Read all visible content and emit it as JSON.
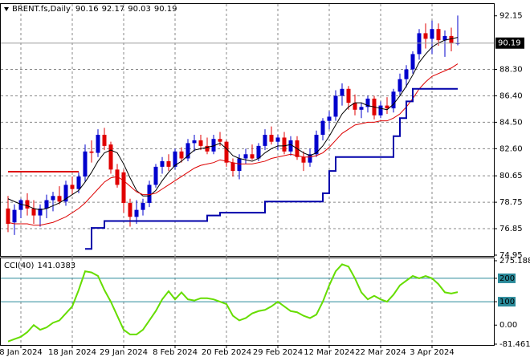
{
  "chart_data": [
    {
      "type": "candlestick",
      "title": "BRENT.fs,Daily",
      "categories": [
        null,
        null,
        "8 Jan 2024",
        null,
        null,
        null,
        null,
        null,
        null,
        null,
        "18 Jan 2024",
        null,
        null,
        null,
        null,
        null,
        null,
        null,
        "29 Jan 2024",
        null,
        null,
        null,
        null,
        null,
        null,
        null,
        "8 Feb 2024",
        null,
        null,
        null,
        null,
        null,
        null,
        null,
        "20 Feb 2024",
        null,
        null,
        null,
        null,
        null,
        null,
        null,
        "29 Feb 2024",
        null,
        null,
        null,
        null,
        null,
        null,
        null,
        "12 Mar 2024",
        null,
        null,
        null,
        null,
        null,
        null,
        null,
        "22 Mar 2024",
        null,
        null,
        null,
        null,
        null,
        null,
        null,
        "3 Apr 2024",
        null,
        null,
        null,
        null
      ],
      "open": [
        78.3,
        77.3,
        78.2,
        78.9,
        78.3,
        77.8,
        78.3,
        78.9,
        79.2,
        78.8,
        80.0,
        79.7,
        80.6,
        82.4,
        82.3,
        83.6,
        82.9,
        81.1,
        80.9,
        78.7,
        77.7,
        78.2,
        78.7,
        80.0,
        81.3,
        81.7,
        81.3,
        82.4,
        81.9,
        83.0,
        83.2,
        82.8,
        82.4,
        83.3,
        83.1,
        81.6,
        81.0,
        81.9,
        82.2,
        81.9,
        82.8,
        83.6,
        83.1,
        83.4,
        82.4,
        83.2,
        82.0,
        81.6,
        82.2,
        83.6,
        84.6,
        84.9,
        86.4,
        86.9,
        85.9,
        85.4,
        85.6,
        86.2,
        85.0,
        85.7,
        85.5,
        86.7,
        87.6,
        88.3,
        89.4,
        90.9,
        90.5,
        91.2,
        90.4,
        90.7,
        90.16
      ],
      "high": [
        79.2,
        78.6,
        79.0,
        79.4,
        78.9,
        78.6,
        79.3,
        79.5,
        79.9,
        80.3,
        80.6,
        80.9,
        82.9,
        83.2,
        84.0,
        84.1,
        83.1,
        81.5,
        81.1,
        79.0,
        78.9,
        79.0,
        80.3,
        81.5,
        82.0,
        82.2,
        82.6,
        82.7,
        83.3,
        83.6,
        83.6,
        83.4,
        83.6,
        83.8,
        83.2,
        81.9,
        82.2,
        82.6,
        82.9,
        83.0,
        84.0,
        84.2,
        83.6,
        83.8,
        83.5,
        83.5,
        82.4,
        82.6,
        83.9,
        84.8,
        85.3,
        86.8,
        87.3,
        87.1,
        86.5,
        85.9,
        86.4,
        86.4,
        86.0,
        86.3,
        86.9,
        88.0,
        88.6,
        89.6,
        91.2,
        91.6,
        91.8,
        91.6,
        91.1,
        91.3,
        92.17
      ],
      "low": [
        76.6,
        76.4,
        77.6,
        77.8,
        77.2,
        77.0,
        77.6,
        78.1,
        78.6,
        78.5,
        79.3,
        79.4,
        80.2,
        81.6,
        82.0,
        82.5,
        80.8,
        79.8,
        78.0,
        77.0,
        77.2,
        77.8,
        78.4,
        79.8,
        80.8,
        81.0,
        81.1,
        81.6,
        81.7,
        82.4,
        82.5,
        82.2,
        82.2,
        82.8,
        81.3,
        80.6,
        80.4,
        81.5,
        81.8,
        81.7,
        82.5,
        82.9,
        82.5,
        82.2,
        82.1,
        81.8,
        81.0,
        81.3,
        82.0,
        83.2,
        84.0,
        84.6,
        85.7,
        85.4,
        85.0,
        84.8,
        85.2,
        84.7,
        84.8,
        85.1,
        85.2,
        86.4,
        87.0,
        88.0,
        89.0,
        89.8,
        89.4,
        90.0,
        89.2,
        89.6,
        90.03
      ],
      "close": [
        77.2,
        78.2,
        78.9,
        78.3,
        77.8,
        78.3,
        78.9,
        79.2,
        78.8,
        80.0,
        79.7,
        80.6,
        82.4,
        82.3,
        83.6,
        82.8,
        81.1,
        80.0,
        78.7,
        77.7,
        78.2,
        78.7,
        80.0,
        81.3,
        81.7,
        81.3,
        82.4,
        81.9,
        83.0,
        83.2,
        82.8,
        82.4,
        83.3,
        83.1,
        81.6,
        81.0,
        81.9,
        82.2,
        81.9,
        82.8,
        83.6,
        83.1,
        83.4,
        82.4,
        83.2,
        82.0,
        81.6,
        82.2,
        83.6,
        84.6,
        84.9,
        86.4,
        86.9,
        85.9,
        85.4,
        85.6,
        86.2,
        85.0,
        85.7,
        85.5,
        86.7,
        87.6,
        88.3,
        89.4,
        90.9,
        90.5,
        91.2,
        90.4,
        90.7,
        90.2,
        90.19
      ],
      "up_color": "#0000cd",
      "down_color": "#e00000",
      "series": [
        {
          "color": "#000000",
          "width": 1,
          "values": [
            79.0,
            78.8,
            78.6,
            78.5,
            78.3,
            78.2,
            78.3,
            78.5,
            78.7,
            79.0,
            79.3,
            79.6,
            80.2,
            80.9,
            81.7,
            82.3,
            82.5,
            82.3,
            81.5,
            80.5,
            79.6,
            79.2,
            79.2,
            79.6,
            80.3,
            80.9,
            81.4,
            81.7,
            82.1,
            82.5,
            82.6,
            82.7,
            82.8,
            83.0,
            82.6,
            82.1,
            81.9,
            81.8,
            81.7,
            81.9,
            82.3,
            82.6,
            82.8,
            82.8,
            82.9,
            82.6,
            82.3,
            82.1,
            82.3,
            82.8,
            83.5,
            84.3,
            85.1,
            85.6,
            85.9,
            85.9,
            85.7,
            85.6,
            85.5,
            85.4,
            85.8,
            86.4,
            87.1,
            87.9,
            88.8,
            89.4,
            89.9,
            90.2,
            90.4,
            90.5,
            90.6
          ]
        },
        {
          "color": "#dd0000",
          "width": 1,
          "values": [
            77.3,
            77.2,
            77.2,
            77.2,
            77.1,
            77.1,
            77.2,
            77.3,
            77.5,
            77.7,
            78.0,
            78.3,
            78.7,
            79.2,
            79.7,
            80.2,
            80.5,
            80.6,
            80.3,
            79.9,
            79.5,
            79.3,
            79.3,
            79.4,
            79.7,
            80.0,
            80.3,
            80.6,
            80.9,
            81.2,
            81.4,
            81.5,
            81.6,
            81.8,
            81.7,
            81.6,
            81.5,
            81.5,
            81.5,
            81.6,
            81.7,
            81.9,
            82.0,
            82.1,
            82.2,
            82.1,
            82.0,
            82.0,
            82.1,
            82.3,
            82.7,
            83.2,
            83.7,
            84.0,
            84.3,
            84.4,
            84.5,
            84.5,
            84.6,
            84.6,
            84.8,
            85.1,
            85.6,
            86.2,
            86.9,
            87.4,
            87.8,
            88.0,
            88.2,
            88.4,
            88.7
          ]
        },
        {
          "color": "#0000aa",
          "width": 2,
          "step": true,
          "values": [
            null,
            null,
            null,
            null,
            null,
            null,
            null,
            null,
            null,
            null,
            null,
            null,
            75.4,
            76.9,
            76.9,
            77.4,
            77.4,
            77.4,
            77.4,
            77.4,
            77.4,
            77.4,
            77.4,
            77.4,
            77.4,
            77.4,
            77.4,
            77.4,
            77.4,
            77.4,
            77.4,
            77.8,
            77.8,
            78.0,
            78.0,
            78.0,
            78.0,
            78.0,
            78.0,
            78.0,
            78.8,
            78.8,
            78.8,
            78.8,
            78.8,
            78.8,
            78.8,
            78.8,
            78.8,
            79.4,
            81.0,
            82.0,
            82.0,
            82.0,
            82.0,
            82.0,
            82.0,
            82.0,
            82.0,
            82.0,
            83.5,
            84.8,
            86.0,
            86.9,
            86.9,
            86.9,
            86.9,
            86.9,
            86.9,
            86.9,
            86.9
          ]
        },
        {
          "color": "#dd0000",
          "width": 2,
          "values": [
            80.95,
            80.95,
            80.95,
            80.95,
            80.95,
            80.95,
            80.95,
            80.95,
            80.95,
            80.95,
            80.95,
            80.95,
            null,
            null,
            null,
            null,
            null,
            null,
            null,
            null,
            null,
            null,
            null,
            null,
            null,
            null,
            null,
            null,
            null,
            null,
            null,
            null,
            null,
            null,
            null,
            null,
            null,
            null,
            null,
            null,
            null,
            null,
            null,
            null,
            null,
            null,
            null,
            null,
            null,
            null,
            null,
            null,
            null,
            null,
            null,
            null,
            null,
            null,
            null,
            null,
            null,
            null,
            null,
            null,
            null,
            null,
            null,
            null,
            null,
            null,
            null
          ]
        }
      ],
      "ylim": [
        74.95,
        93.0
      ],
      "yticks": [
        92.15,
        {
          "value": 88.3,
          "label": "88.30"
        },
        {
          "value": 86.4,
          "label": "86.40"
        },
        {
          "value": 84.5,
          "label": "84.50"
        },
        {
          "value": 82.6,
          "label": "82.60"
        },
        80.65,
        78.75,
        76.85,
        74.95
      ],
      "grid": true
    },
    {
      "type": "line",
      "title": "CCI(40)",
      "color": "#66dd00",
      "level_color": "#2a8a9a",
      "values": [
        -70,
        -60,
        -50,
        -30,
        0,
        -20,
        -10,
        10,
        20,
        50,
        80,
        150,
        230,
        225,
        210,
        150,
        100,
        40,
        -20,
        -40,
        -40,
        -20,
        20,
        60,
        110,
        145,
        110,
        140,
        110,
        105,
        115,
        115,
        110,
        100,
        90,
        40,
        20,
        30,
        50,
        60,
        65,
        80,
        100,
        80,
        60,
        55,
        40,
        30,
        45,
        100,
        170,
        230,
        260,
        250,
        200,
        140,
        110,
        125,
        110,
        100,
        130,
        170,
        190,
        210,
        200,
        210,
        200,
        175,
        140,
        135,
        141.0383
      ],
      "levels": [
        200,
        100
      ],
      "ylim": [
        -81.4618,
        275.1884
      ],
      "yticks": [
        275.1884,
        200,
        100,
        {
          "value": 0,
          "label": "0.00"
        },
        -81.4618
      ]
    }
  ]
}
